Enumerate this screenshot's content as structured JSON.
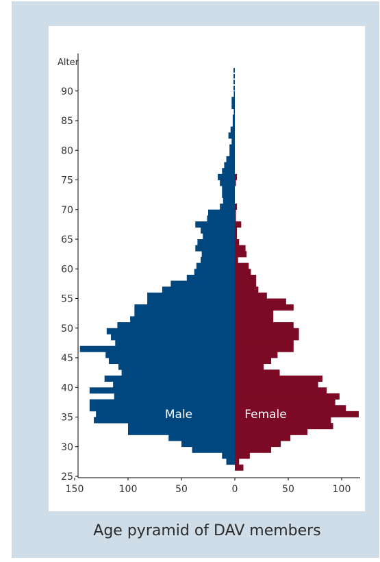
{
  "caption": "Age pyramid of DAV members",
  "chart_data": {
    "type": "bar",
    "orientation": "horizontal-pyramid",
    "title": "Age pyramid of DAV members",
    "ylabel": "Alter",
    "xlabel": "",
    "xlim": [
      -150,
      100
    ],
    "ylim": [
      25,
      94
    ],
    "x_ticks": [
      {
        "value": -150,
        "label": "150"
      },
      {
        "value": -100,
        "label": "100"
      },
      {
        "value": -50,
        "label": "50"
      },
      {
        "value": 0,
        "label": "0"
      },
      {
        "value": 50,
        "label": "50"
      },
      {
        "value": 100,
        "label": "100"
      }
    ],
    "y_ticks": [
      25,
      30,
      35,
      40,
      45,
      50,
      55,
      60,
      65,
      70,
      75,
      80,
      85,
      90
    ],
    "ages": [
      26,
      27,
      28,
      29,
      30,
      31,
      32,
      33,
      34,
      35,
      36,
      37,
      38,
      39,
      40,
      41,
      42,
      43,
      44,
      45,
      46,
      47,
      48,
      49,
      50,
      51,
      52,
      53,
      54,
      55,
      56,
      57,
      58,
      59,
      60,
      61,
      62,
      63,
      64,
      65,
      66,
      67,
      68,
      69,
      70,
      71,
      72,
      73,
      74,
      75,
      76,
      77,
      78,
      79,
      80,
      81,
      82,
      83,
      84,
      85,
      86,
      87,
      88,
      89,
      90,
      91,
      92,
      93
    ],
    "series": [
      {
        "name": "Male",
        "color": "#00467f",
        "values": [
          0,
          8,
          12,
          40,
          50,
          62,
          100,
          100,
          132,
          130,
          136,
          136,
          113,
          136,
          114,
          122,
          106,
          109,
          118,
          121,
          145,
          112,
          116,
          120,
          110,
          98,
          94,
          94,
          82,
          82,
          68,
          60,
          45,
          38,
          36,
          32,
          31,
          37,
          35,
          30,
          32,
          37,
          26,
          25,
          14,
          11,
          12,
          12,
          14,
          16,
          12,
          10,
          8,
          5,
          5,
          3,
          6,
          4,
          2,
          2,
          1,
          3,
          3,
          1,
          0,
          0,
          0,
          0
        ]
      },
      {
        "name": "Female",
        "color": "#7d0a24",
        "values": [
          8,
          4,
          14,
          34,
          43,
          52,
          68,
          92,
          90,
          116,
          104,
          94,
          98,
          86,
          78,
          82,
          42,
          27,
          34,
          40,
          55,
          55,
          60,
          60,
          55,
          36,
          36,
          55,
          48,
          30,
          22,
          20,
          20,
          15,
          13,
          3,
          11,
          10,
          4,
          2,
          2,
          6,
          1,
          1,
          2,
          0,
          0,
          0,
          1,
          2,
          0,
          0,
          0,
          0,
          0,
          0,
          0,
          0,
          0,
          0,
          0,
          0,
          0,
          0,
          0,
          0,
          0,
          0
        ]
      }
    ],
    "grid": false,
    "legend": "inline-labels"
  }
}
